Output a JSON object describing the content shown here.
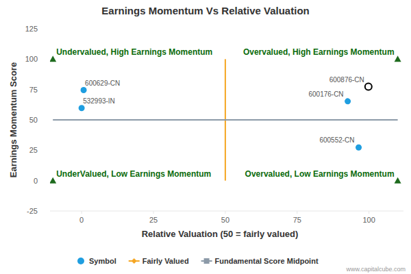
{
  "chart_data": {
    "type": "scatter",
    "title": "Earnings Momentum Vs Relative Valuation",
    "x_label": "Relative Valuation (50 = fairly valued)",
    "y_label": "Earnings Momentum Score",
    "xlim": [
      -11,
      112
    ],
    "ylim": [
      -25,
      125
    ],
    "xticks": [
      0,
      25,
      50,
      75,
      100
    ],
    "yticks": [
      -25,
      0,
      25,
      50,
      75,
      100,
      125
    ],
    "grid": false,
    "legend": "bottom",
    "credit": "www.capitalcube.com",
    "series": [
      {
        "name": "Symbol",
        "type": "scatter",
        "marker": "circle",
        "color": "#1f9ee0",
        "labels": [
          "600629-CN",
          "532993-IN",
          "600176-CN",
          "600552-CN"
        ],
        "x": [
          0.7,
          0,
          92.6,
          96.4
        ],
        "values": [
          74.5,
          59.7,
          65.3,
          27.3
        ]
      },
      {
        "type": "scatter",
        "marker": "open-circle",
        "color": "#000000",
        "labels": [
          "600876-CN"
        ],
        "x": [
          99.8
        ],
        "values": [
          77.3
        ]
      },
      {
        "name": "Fairly Valued",
        "type": "line",
        "marker": "diamond",
        "color": "#f5a623",
        "x": [
          50,
          50
        ],
        "values": [
          0,
          100
        ]
      },
      {
        "name": "Fundamental Score Midpoint",
        "type": "line",
        "marker": "square",
        "color": "#8c9aa8",
        "x": [
          -10,
          110
        ],
        "values": [
          50,
          50
        ]
      }
    ],
    "annotations": [
      {
        "text": "Undervalued, High Earnings Momentum",
        "x": -10,
        "y": 100,
        "color": "#0b6b0b"
      },
      {
        "text": "Overvalued, High Earnings Momentum",
        "x": 110,
        "y": 100,
        "color": "#0b6b0b"
      },
      {
        "text": "UnderValued, Low Earnings Momentum",
        "x": -10,
        "y": 0,
        "color": "#0b6b0b"
      },
      {
        "text": "Overvalued, Low Earnings Momentum",
        "x": 110,
        "y": 0,
        "color": "#0b6b0b"
      }
    ]
  }
}
